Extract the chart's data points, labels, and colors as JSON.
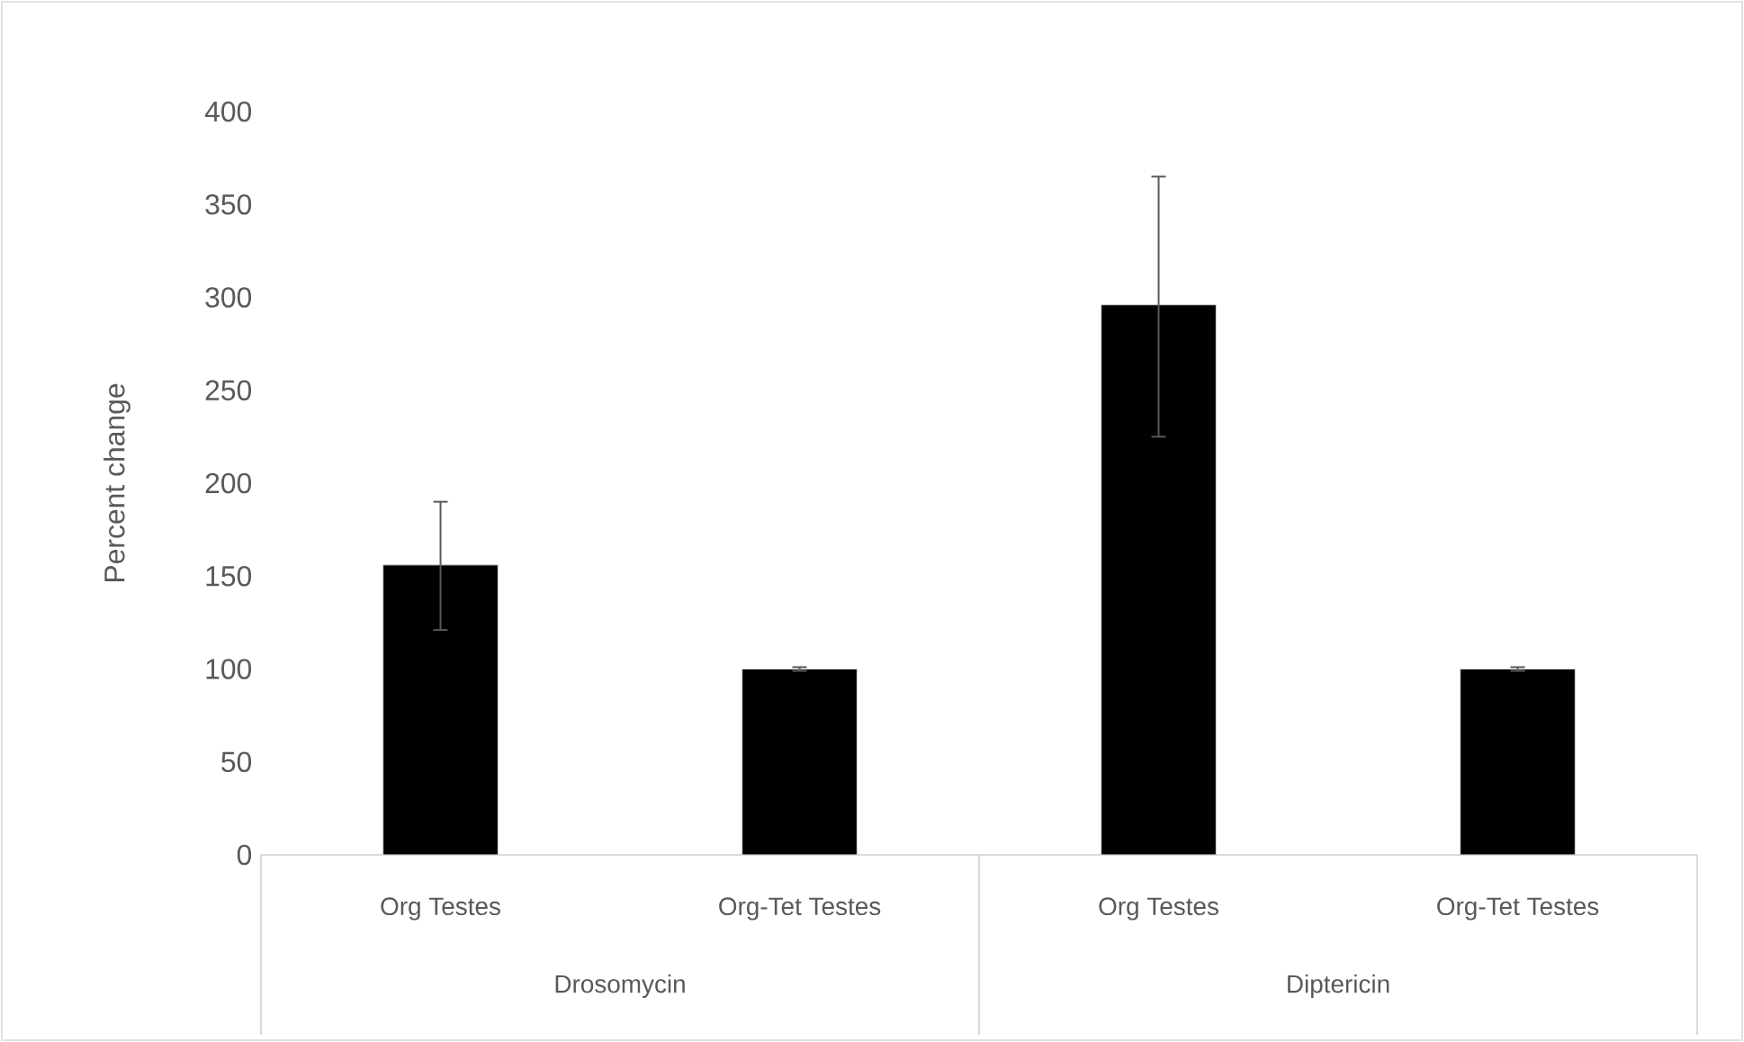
{
  "chart_data": {
    "type": "bar",
    "ylabel": "Percent change",
    "categories": [
      "Org Testes",
      "Org-Tet Testes",
      "Org Testes",
      "Org-Tet Testes"
    ],
    "values": [
      156,
      100,
      296,
      100
    ],
    "errors": [
      [
        121,
        190
      ],
      1,
      [
        225,
        365
      ],
      1
    ],
    "color": "#000000",
    "ylim": [
      0,
      400
    ],
    "yticks": [
      0,
      50,
      100,
      150,
      200,
      250,
      300,
      350,
      400
    ],
    "annotations": [
      "Drosomycin",
      "Diptericin"
    ]
  }
}
